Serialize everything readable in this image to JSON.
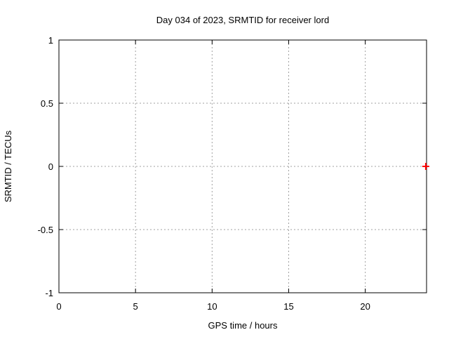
{
  "chart": {
    "title": "Day 034 of 2023, SRMTID for receiver lord",
    "xlabel": "GPS time / hours",
    "ylabel": "SRMTID / TECUs"
  },
  "chart_data": {
    "type": "scatter",
    "title": "Day 034 of 2023, SRMTID for receiver lord",
    "xlabel": "GPS time / hours",
    "ylabel": "SRMTID / TECUs",
    "xlim": [
      0,
      24
    ],
    "ylim": [
      -1,
      1
    ],
    "x_ticks": [
      0,
      5,
      10,
      15,
      20
    ],
    "x_tick_labels": [
      "0",
      "5",
      "10",
      "15",
      "20"
    ],
    "y_ticks": [
      -1,
      -0.5,
      0,
      0.5,
      1
    ],
    "y_tick_labels": [
      "-1",
      "-0.5",
      "0",
      "0.5",
      "1"
    ],
    "grid": true,
    "legend_position": "none",
    "series": [
      {
        "name": "SRMTID",
        "marker": "plus",
        "color": "#ff0000",
        "points": [
          {
            "x": 23.95,
            "y": 0.0
          }
        ]
      }
    ],
    "colors": {
      "background": "#ffffff",
      "axis": "#000000",
      "grid": "#a0a0a0",
      "text": "#000000",
      "point": "#ff0000"
    }
  }
}
